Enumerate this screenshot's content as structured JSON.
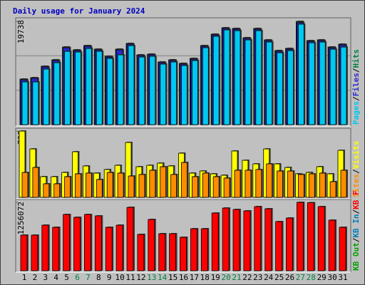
{
  "chart_data": [
    {
      "type": "bar",
      "title": "Daily usage for January 2024",
      "legend_separator": "/",
      "ylim": [
        0,
        19738
      ],
      "yticks": [
        19738
      ],
      "series": [
        {
          "name": "Hits",
          "color": "#008040",
          "values": [
            8720,
            8990,
            11170,
            12400,
            14850,
            14300,
            15120,
            14440,
            13080,
            14440,
            15530,
            13350,
            13490,
            11990,
            12400,
            11720,
            12670,
            15120,
            17300,
            18520,
            18390,
            16620,
            18390,
            16210,
            14170,
            14580,
            19738,
            16070,
            16210,
            14850,
            15390
          ]
        },
        {
          "name": "Files",
          "color": "#2828d0",
          "values": [
            8574,
            8847,
            11024,
            12249,
            14699,
            14154,
            14971,
            14291,
            12930,
            14291,
            15379,
            13202,
            13338,
            11841,
            12249,
            11569,
            12521,
            14971,
            17149,
            18374,
            18237,
            16468,
            18237,
            16060,
            14018,
            14427,
            19500,
            15924,
            16060,
            14699,
            15243
          ]
        },
        {
          "name": "Pages",
          "color": "#00c8f0",
          "values": [
            8170,
            8170,
            10620,
            11840,
            14020,
            13880,
            14560,
            14020,
            12660,
            13340,
            15100,
            12930,
            13060,
            11570,
            11980,
            11300,
            12250,
            14700,
            16880,
            18100,
            17960,
            16190,
            17960,
            15790,
            13740,
            14150,
            19200,
            15650,
            15790,
            14420,
            14830
          ]
        }
      ]
    },
    {
      "type": "bar",
      "legend_separator": "/",
      "ylim": [
        0,
        798
      ],
      "yticks": [
        798
      ],
      "series": [
        {
          "name": "Visits",
          "color": "#ffff00",
          "values": [
            798,
            583,
            249,
            249,
            300,
            549,
            378,
            292,
            335,
            386,
            661,
            369,
            386,
            412,
            378,
            532,
            292,
            317,
            283,
            266,
            558,
            446,
            403,
            583,
            403,
            360,
            283,
            300,
            369,
            283,
            566
          ]
        },
        {
          "name": "Sites",
          "color": "#ff8c00",
          "values": [
            300,
            360,
            163,
            163,
            249,
            283,
            292,
            215,
            300,
            292,
            257,
            275,
            326,
            369,
            275,
            420,
            249,
            292,
            249,
            232,
            326,
            326,
            335,
            403,
            317,
            317,
            275,
            283,
            292,
            189,
            326
          ]
        }
      ]
    },
    {
      "type": "bar",
      "legend_separator": "/",
      "ylim": [
        0,
        1256072
      ],
      "yticks": [
        1256072
      ],
      "series": [
        {
          "name": "KB F",
          "color": "#ff0000",
          "values": [
            654200,
            654200,
            837376,
            798124,
            1033636,
            981300,
            1033636,
            1007468,
            798124,
            837376,
            1164476,
            667284,
            942048,
            680368,
            680368,
            614948,
            771956,
            771956,
            1059804,
            1151392,
            1125224,
            1099056,
            1177560,
            1138308,
            902796,
            968216,
            1256072,
            1250000,
            1177560,
            928964,
            798124
          ]
        },
        {
          "name": "KB In",
          "color": "#0080c0"
        },
        {
          "name": "KB Out",
          "color": "#00a000"
        }
      ],
      "categories": [
        "1",
        "2",
        "3",
        "4",
        "5",
        "6",
        "7",
        "8",
        "9",
        "10",
        "11",
        "12",
        "13",
        "14",
        "15",
        "16",
        "17",
        "18",
        "19",
        "20",
        "21",
        "22",
        "23",
        "24",
        "25",
        "26",
        "27",
        "28",
        "29",
        "30",
        "31"
      ],
      "category_colors": [
        "#000000",
        "#000000",
        "#000000",
        "#000000",
        "#000000",
        "#008040",
        "#008040",
        "#000000",
        "#000000",
        "#000000",
        "#000000",
        "#000000",
        "#008040",
        "#008040",
        "#000000",
        "#000000",
        "#000000",
        "#000000",
        "#000000",
        "#008040",
        "#008040",
        "#000000",
        "#000000",
        "#000000",
        "#000000",
        "#000000",
        "#008040",
        "#008040",
        "#000000",
        "#000000",
        "#000000"
      ]
    }
  ]
}
